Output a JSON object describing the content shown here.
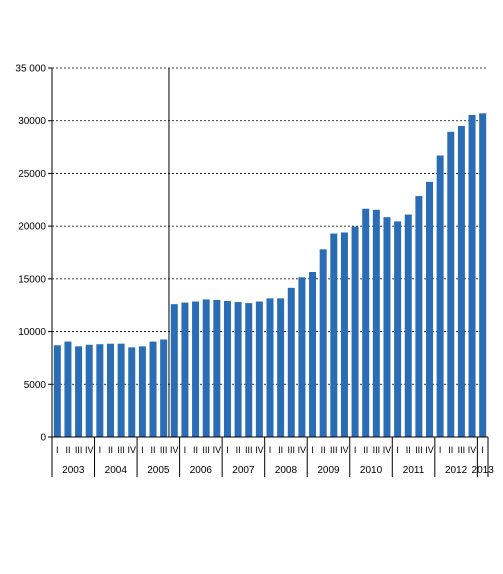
{
  "chart_data": {
    "type": "bar",
    "title": "",
    "xlabel": "",
    "ylabel": "",
    "ylim": [
      0,
      35000
    ],
    "yticks": [
      0,
      5000,
      10000,
      15000,
      20000,
      25000,
      30000,
      35000
    ],
    "ytick_labels": [
      "0",
      "5000",
      "10000",
      "15000",
      "20000",
      "25000",
      "30000",
      "35 000"
    ],
    "grid": "horizontal dashed",
    "bar_color": "#2a6db5",
    "break_after_index": 10,
    "years": [
      {
        "label": "2003",
        "start": 0,
        "count": 4
      },
      {
        "label": "2004",
        "start": 4,
        "count": 4
      },
      {
        "label": "2005",
        "start": 8,
        "count": 4
      },
      {
        "label": "2006",
        "start": 12,
        "count": 4
      },
      {
        "label": "2007",
        "start": 16,
        "count": 4
      },
      {
        "label": "2008",
        "start": 20,
        "count": 4
      },
      {
        "label": "2009",
        "start": 24,
        "count": 4
      },
      {
        "label": "2010",
        "start": 28,
        "count": 4
      },
      {
        "label": "2011",
        "start": 32,
        "count": 4
      },
      {
        "label": "2012",
        "start": 36,
        "count": 4
      },
      {
        "label": "2013",
        "start": 40,
        "count": 1
      }
    ],
    "categories": [
      "I",
      "II",
      "III",
      "IV",
      "I",
      "II",
      "III",
      "IV",
      "I",
      "II",
      "III",
      "IV",
      "I",
      "II",
      "III",
      "IV",
      "I",
      "II",
      "III",
      "IV",
      "I",
      "II",
      "III",
      "IV",
      "I",
      "II",
      "III",
      "IV",
      "I",
      "II",
      "III",
      "IV",
      "I",
      "II",
      "III",
      "IV",
      "I",
      "II",
      "III",
      "IV",
      "I"
    ],
    "values": [
      8700,
      9050,
      8600,
      8750,
      8800,
      8850,
      8850,
      8500,
      8600,
      9050,
      9250,
      12600,
      12750,
      12850,
      13050,
      13000,
      12900,
      12800,
      12700,
      12850,
      13150,
      13150,
      14150,
      15150,
      15650,
      17800,
      19300,
      19400,
      19950,
      21650,
      21550,
      20850,
      20450,
      21100,
      22850,
      24200,
      26700,
      28950,
      29500,
      30550,
      30700
    ]
  }
}
